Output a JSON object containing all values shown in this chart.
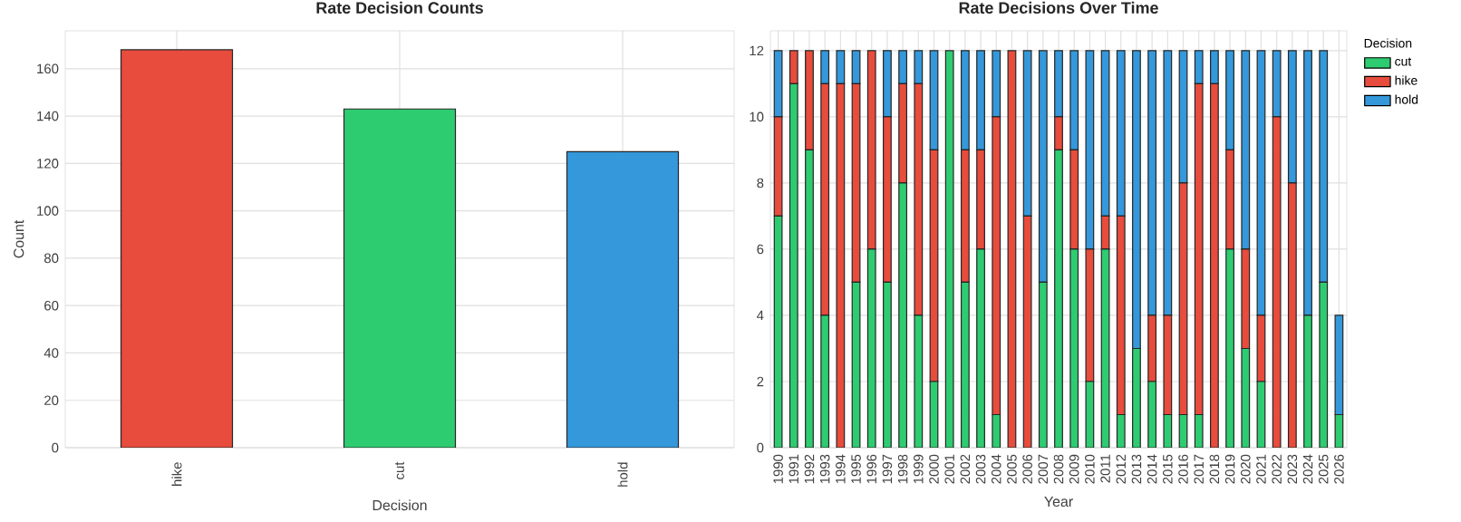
{
  "chart_data": [
    {
      "type": "bar",
      "title": "Rate Decision Counts",
      "xlabel": "Decision",
      "ylabel": "Count",
      "categories": [
        "hike",
        "cut",
        "hold"
      ],
      "values": [
        168,
        143,
        125
      ],
      "colors": [
        "#e74c3c",
        "#2ecc71",
        "#3498db"
      ],
      "ylim": [
        0,
        176
      ],
      "yticks": [
        0,
        20,
        40,
        60,
        80,
        100,
        120,
        140,
        160
      ],
      "grid": true
    },
    {
      "type": "bar",
      "stacked": true,
      "title": "Rate Decisions Over Time",
      "xlabel": "Year",
      "legend_title": "Decision",
      "legend": "right",
      "categories": [
        "1990",
        "1991",
        "1992",
        "1993",
        "1994",
        "1995",
        "1996",
        "1997",
        "1998",
        "1999",
        "2000",
        "2001",
        "2002",
        "2003",
        "2004",
        "2005",
        "2006",
        "2007",
        "2008",
        "2009",
        "2010",
        "2011",
        "2012",
        "2013",
        "2014",
        "2015",
        "2016",
        "2017",
        "2018",
        "2019",
        "2020",
        "2021",
        "2022",
        "2023",
        "2024",
        "2025",
        "2026"
      ],
      "series": [
        {
          "name": "cut",
          "color": "#2ecc71",
          "values": [
            7,
            11,
            9,
            4,
            0,
            5,
            6,
            5,
            8,
            4,
            2,
            12,
            5,
            6,
            1,
            0,
            0,
            5,
            9,
            6,
            2,
            6,
            1,
            3,
            2,
            1,
            1,
            1,
            0,
            6,
            3,
            2,
            0,
            0,
            4,
            5,
            1
          ]
        },
        {
          "name": "hike",
          "color": "#e74c3c",
          "values": [
            3,
            1,
            3,
            7,
            11,
            6,
            6,
            5,
            3,
            7,
            7,
            0,
            4,
            3,
            9,
            12,
            7,
            0,
            1,
            3,
            4,
            1,
            6,
            0,
            2,
            3,
            7,
            10,
            11,
            3,
            3,
            2,
            10,
            8,
            0,
            0,
            0
          ]
        },
        {
          "name": "hold",
          "color": "#3498db",
          "values": [
            2,
            0,
            0,
            1,
            1,
            1,
            0,
            2,
            1,
            1,
            3,
            0,
            3,
            3,
            2,
            0,
            5,
            7,
            2,
            3,
            6,
            5,
            5,
            9,
            8,
            8,
            4,
            1,
            1,
            3,
            6,
            8,
            2,
            4,
            8,
            7,
            3
          ]
        }
      ],
      "ylim": [
        0,
        12.6
      ],
      "yticks": [
        0,
        2,
        4,
        6,
        8,
        10,
        12
      ],
      "grid": true
    }
  ]
}
